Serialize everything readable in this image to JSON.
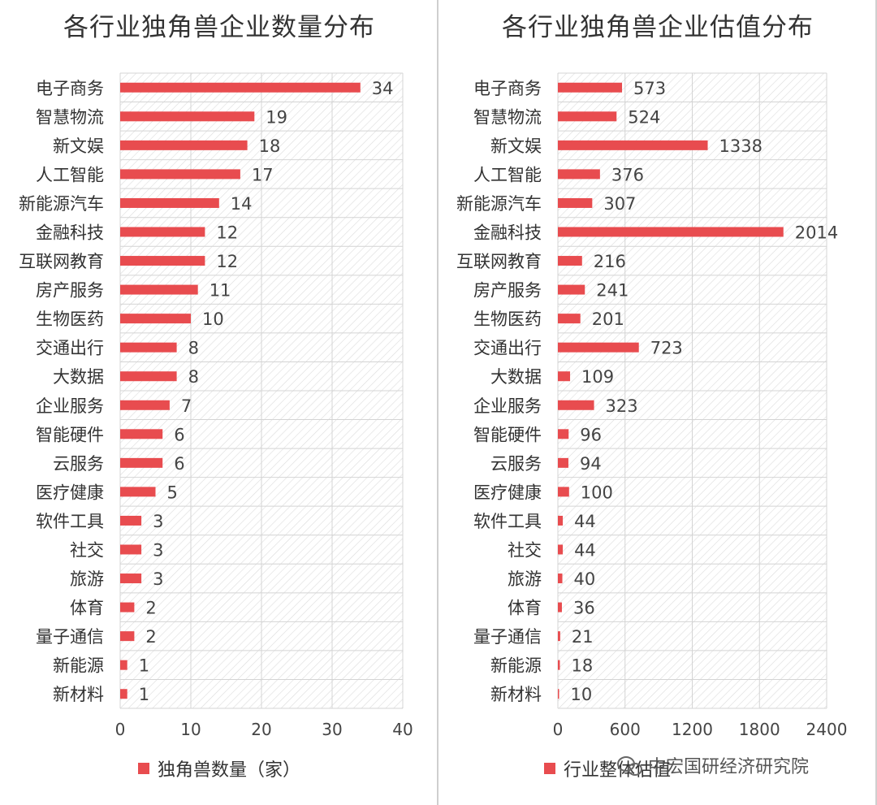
{
  "colors": {
    "bar": "#e84c4f",
    "text": "#333333",
    "grid": "#d4d4d4",
    "hatch": "#dcdcdc"
  },
  "watermark": {
    "text": "中宏国研经济研究院",
    "icon": "wechat-icon"
  },
  "chart_data": [
    {
      "type": "bar",
      "orientation": "horizontal",
      "title": "各行业独角兽企业数量分布",
      "categories": [
        "电子商务",
        "智慧物流",
        "新文娱",
        "人工智能",
        "新能源汽车",
        "金融科技",
        "互联网教育",
        "房产服务",
        "生物医药",
        "交通出行",
        "大数据",
        "企业服务",
        "智能硬件",
        "云服务",
        "医疗健康",
        "软件工具",
        "社交",
        "旅游",
        "体育",
        "量子通信",
        "新能源",
        "新材料"
      ],
      "series": [
        {
          "name": "独角兽数量（家）",
          "values": [
            34,
            19,
            18,
            17,
            14,
            12,
            12,
            11,
            10,
            8,
            8,
            7,
            6,
            6,
            5,
            3,
            3,
            3,
            2,
            2,
            1,
            1
          ]
        }
      ],
      "xlim": [
        0,
        40
      ],
      "xticks": [
        "0",
        "10",
        "20",
        "30",
        "40"
      ],
      "grid": true,
      "legend": "bottom"
    },
    {
      "type": "bar",
      "orientation": "horizontal",
      "title": "各行业独角兽企业估值分布",
      "categories": [
        "电子商务",
        "智慧物流",
        "新文娱",
        "人工智能",
        "新能源汽车",
        "金融科技",
        "互联网教育",
        "房产服务",
        "生物医药",
        "交通出行",
        "大数据",
        "企业服务",
        "智能硬件",
        "云服务",
        "医疗健康",
        "软件工具",
        "社交",
        "旅游",
        "体育",
        "量子通信",
        "新能源",
        "新材料"
      ],
      "series": [
        {
          "name": "行业整体估值",
          "values": [
            573,
            524,
            1338,
            376,
            307,
            2014,
            216,
            241,
            201,
            723,
            109,
            323,
            96,
            94,
            100,
            44,
            44,
            40,
            36,
            21,
            18,
            10
          ]
        }
      ],
      "xlim": [
        0,
        2400
      ],
      "xticks": [
        "0",
        "600",
        "1200",
        "1800",
        "2400"
      ],
      "grid": true,
      "legend": "bottom"
    }
  ]
}
